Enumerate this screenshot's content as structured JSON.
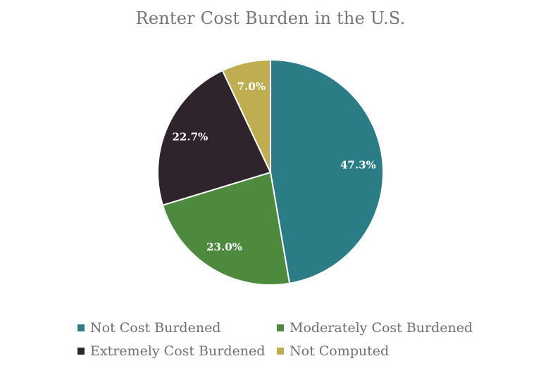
{
  "chart_data": {
    "type": "pie",
    "title": "Renter Cost Burden in the U.S.",
    "legend_position": "bottom",
    "series": [
      {
        "name": "Not Cost Burdened",
        "value": 47.3,
        "label": "47.3%",
        "color": "#2b7d85"
      },
      {
        "name": "Moderately Cost Burdened",
        "value": 23.0,
        "label": "23.0%",
        "color": "#4e8a3e"
      },
      {
        "name": "Extremely Cost Burdened",
        "value": 22.7,
        "label": "22.7%",
        "color": "#2f232c"
      },
      {
        "name": "Not Computed",
        "value": 7.0,
        "label": "7.0%",
        "color": "#c0ad4f"
      }
    ]
  }
}
